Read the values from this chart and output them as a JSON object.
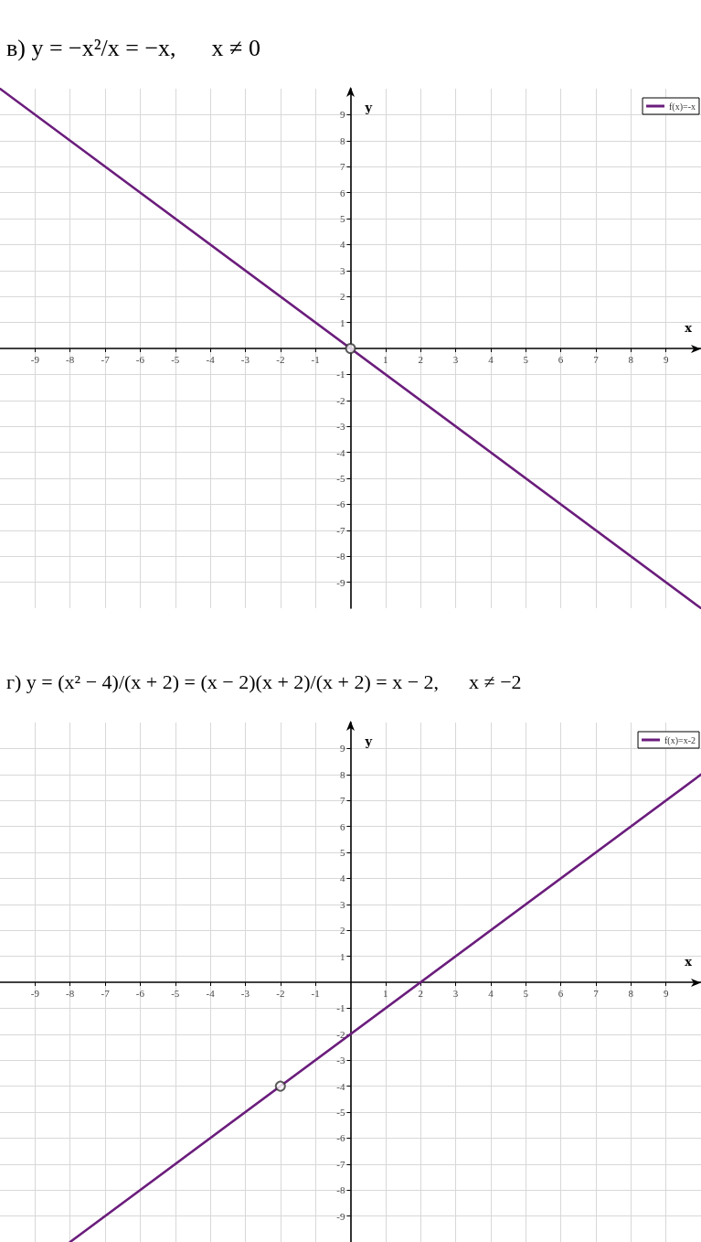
{
  "chart_data": [
    {
      "type": "line",
      "title": "в) y = −x²/x = −x,      x ≠ 0",
      "xlabel": "x",
      "ylabel": "y",
      "xlim": [
        -10,
        10
      ],
      "ylim": [
        -10,
        10
      ],
      "xticks": [
        -9,
        -8,
        -7,
        -6,
        -5,
        -4,
        -3,
        -2,
        -1,
        1,
        2,
        3,
        4,
        5,
        6,
        7,
        8,
        9
      ],
      "yticks": [
        -9,
        -8,
        -7,
        -6,
        -5,
        -4,
        -3,
        -2,
        -1,
        1,
        2,
        3,
        4,
        5,
        6,
        7,
        8,
        9
      ],
      "grid": true,
      "legend": "top right",
      "marker": "none",
      "line_style": "solid",
      "series": [
        {
          "name": "f(x)=-x",
          "color": "#6b1d7c",
          "x": [
            -10,
            10
          ],
          "values": [
            10,
            -10
          ]
        },
        {
          "type": "scatter",
          "marker": "circle",
          "color": "#333333",
          "x": [
            0
          ],
          "values": [
            0
          ]
        }
      ]
    },
    {
      "type": "line",
      "title": "г) y = (x² − 4)/(x + 2) = (x − 2)(x + 2)/(x + 2) = x − 2,      x ≠ −2",
      "xlabel": "x",
      "ylabel": "y",
      "xlim": [
        -10,
        10
      ],
      "ylim": [
        -10,
        10
      ],
      "xticks": [
        -9,
        -8,
        -7,
        -6,
        -5,
        -4,
        -3,
        -2,
        -1,
        1,
        2,
        3,
        4,
        5,
        6,
        7,
        8,
        9
      ],
      "yticks": [
        -9,
        -8,
        -7,
        -6,
        -5,
        -4,
        -3,
        -2,
        -1,
        1,
        2,
        3,
        4,
        5,
        6,
        7,
        8,
        9
      ],
      "grid": true,
      "legend": "top right",
      "marker": "none",
      "line_style": "solid",
      "series": [
        {
          "name": "f(x)=x-2",
          "color": "#6b1d7c",
          "x": [
            -8,
            10
          ],
          "values": [
            -10,
            8
          ]
        },
        {
          "type": "scatter",
          "marker": "circle",
          "color": "#333333",
          "x": [
            -2
          ],
          "values": [
            -4
          ]
        }
      ]
    }
  ]
}
